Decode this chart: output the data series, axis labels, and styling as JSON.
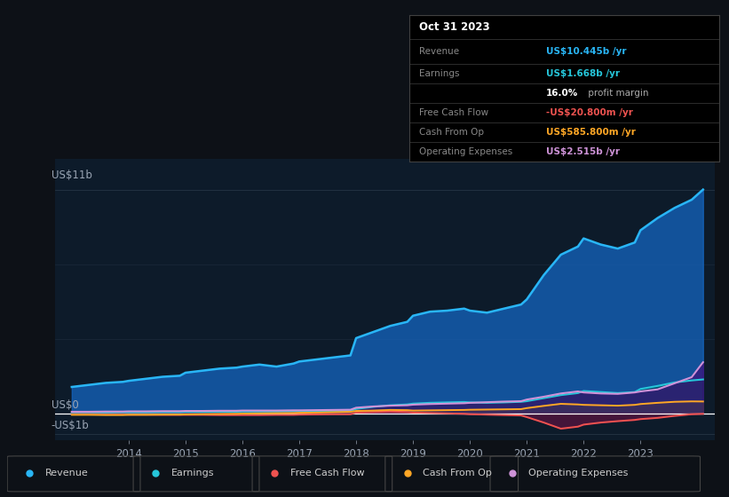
{
  "bg_color": "#0d1117",
  "plot_bg_color": "#0d1b2a",
  "grid_color": "#253545",
  "text_color": "#9aa5b4",
  "white": "#ffffff",
  "ylabel_us11b": "US$11b",
  "ylabel_us0": "US$0",
  "ylabel_usn1b": "-US$1b",
  "ylim": [
    -1.3,
    12.5
  ],
  "xlim": [
    2012.7,
    2024.3
  ],
  "x_ticks": [
    2014,
    2015,
    2016,
    2017,
    2018,
    2019,
    2020,
    2021,
    2022,
    2023
  ],
  "revenue_color": "#29b6f6",
  "earnings_color": "#26c6da",
  "fcf_color": "#ef5350",
  "cashfromop_color": "#ffa726",
  "opex_color": "#ce93d8",
  "revenue_fill_color": "#1565c0",
  "earnings_fill_color": "#004d60",
  "opex_fill_color": "#4a0072",
  "fcf_fill_color": "#880e4f",
  "tooltip_bg": "#000000",
  "tooltip_title": "Oct 31 2023",
  "legend_items": [
    {
      "label": "Revenue",
      "color": "#29b6f6"
    },
    {
      "label": "Earnings",
      "color": "#26c6da"
    },
    {
      "label": "Free Cash Flow",
      "color": "#ef5350"
    },
    {
      "label": "Cash From Op",
      "color": "#ffa726"
    },
    {
      "label": "Operating Expenses",
      "color": "#ce93d8"
    }
  ],
  "years": [
    2013.0,
    2013.3,
    2013.6,
    2013.9,
    2014.0,
    2014.3,
    2014.6,
    2014.9,
    2015.0,
    2015.3,
    2015.6,
    2015.9,
    2016.0,
    2016.3,
    2016.6,
    2016.9,
    2017.0,
    2017.3,
    2017.6,
    2017.9,
    2018.0,
    2018.3,
    2018.6,
    2018.9,
    2019.0,
    2019.3,
    2019.6,
    2019.9,
    2020.0,
    2020.3,
    2020.6,
    2020.9,
    2021.0,
    2021.3,
    2021.6,
    2021.9,
    2022.0,
    2022.3,
    2022.6,
    2022.9,
    2023.0,
    2023.3,
    2023.6,
    2023.9,
    2024.1
  ],
  "revenue": [
    1.3,
    1.4,
    1.5,
    1.55,
    1.6,
    1.7,
    1.8,
    1.85,
    2.0,
    2.1,
    2.2,
    2.25,
    2.3,
    2.4,
    2.3,
    2.45,
    2.55,
    2.65,
    2.75,
    2.85,
    3.7,
    4.0,
    4.3,
    4.5,
    4.8,
    5.0,
    5.05,
    5.15,
    5.05,
    4.95,
    5.15,
    5.35,
    5.6,
    6.8,
    7.8,
    8.2,
    8.6,
    8.3,
    8.1,
    8.4,
    9.0,
    9.6,
    10.1,
    10.5,
    11.0
  ],
  "earnings": [
    0.04,
    0.04,
    0.04,
    0.05,
    0.05,
    0.05,
    0.06,
    0.06,
    0.07,
    0.07,
    0.08,
    0.08,
    0.09,
    0.09,
    0.09,
    0.1,
    0.1,
    0.1,
    0.11,
    0.12,
    0.22,
    0.32,
    0.4,
    0.44,
    0.48,
    0.52,
    0.54,
    0.56,
    0.54,
    0.52,
    0.54,
    0.57,
    0.6,
    0.75,
    0.9,
    1.0,
    1.1,
    1.05,
    1.0,
    1.05,
    1.2,
    1.35,
    1.52,
    1.62,
    1.668
  ],
  "fcf": [
    -0.04,
    -0.04,
    -0.05,
    -0.05,
    -0.06,
    -0.06,
    -0.07,
    -0.07,
    -0.07,
    -0.07,
    -0.08,
    -0.08,
    -0.08,
    -0.08,
    -0.07,
    -0.07,
    -0.06,
    -0.05,
    -0.04,
    -0.04,
    0.04,
    0.07,
    0.09,
    0.07,
    0.04,
    0.02,
    0.0,
    -0.02,
    -0.04,
    -0.06,
    -0.08,
    -0.1,
    -0.18,
    -0.45,
    -0.75,
    -0.65,
    -0.55,
    -0.45,
    -0.38,
    -0.32,
    -0.28,
    -0.22,
    -0.12,
    -0.04,
    -0.021
  ],
  "cashfromop": [
    -0.07,
    -0.07,
    -0.08,
    -0.08,
    -0.07,
    -0.07,
    -0.06,
    -0.06,
    -0.05,
    -0.04,
    -0.03,
    -0.02,
    -0.01,
    0.0,
    0.01,
    0.02,
    0.03,
    0.04,
    0.06,
    0.08,
    0.12,
    0.14,
    0.17,
    0.16,
    0.14,
    0.15,
    0.16,
    0.17,
    0.18,
    0.19,
    0.2,
    0.21,
    0.26,
    0.37,
    0.47,
    0.44,
    0.42,
    0.4,
    0.38,
    0.42,
    0.46,
    0.52,
    0.57,
    0.59,
    0.5858
  ],
  "opex": [
    0.08,
    0.08,
    0.09,
    0.09,
    0.1,
    0.1,
    0.11,
    0.11,
    0.12,
    0.12,
    0.13,
    0.13,
    0.14,
    0.14,
    0.14,
    0.15,
    0.15,
    0.16,
    0.17,
    0.18,
    0.28,
    0.34,
    0.38,
    0.4,
    0.43,
    0.46,
    0.48,
    0.5,
    0.52,
    0.55,
    0.58,
    0.6,
    0.68,
    0.82,
    0.98,
    1.08,
    1.03,
    0.98,
    0.96,
    1.03,
    1.08,
    1.18,
    1.48,
    1.78,
    2.515
  ]
}
